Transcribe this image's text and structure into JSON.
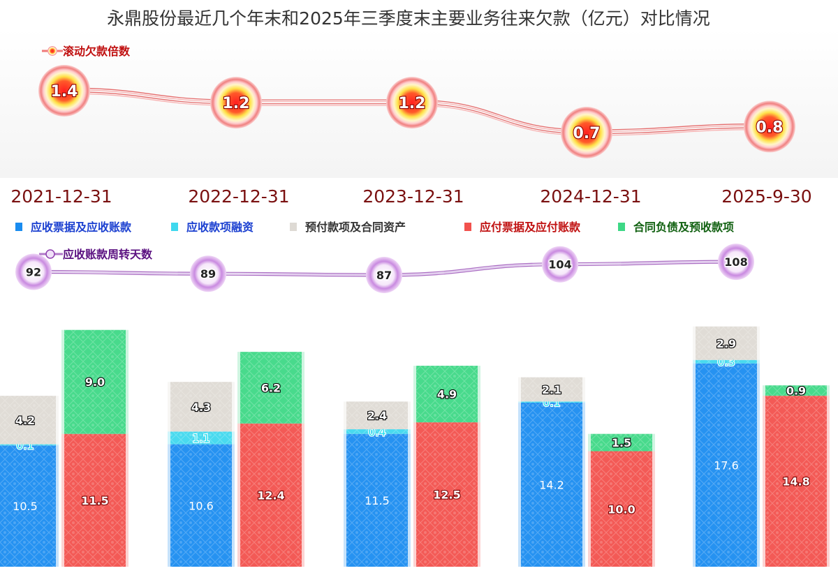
{
  "chart_data": {
    "type": "bar",
    "title": "永鼎股份最近几个年末和2025年三季度末主要业务往来欠款（亿元）对比情况",
    "categories": [
      "2021-12-31",
      "2022-12-31",
      "2023-12-31",
      "2024-12-31",
      "2025-9-30"
    ],
    "stacks": [
      {
        "side": "receivable",
        "series": [
          {
            "name": "应收票据及应收账款",
            "color": "#1a8cf0",
            "values": [
              10.5,
              10.6,
              11.5,
              14.2,
              17.6
            ]
          },
          {
            "name": "应收款项融资",
            "color": "#3fd8ee",
            "values": [
              0.1,
              1.1,
              0.4,
              0.1,
              0.3
            ]
          },
          {
            "name": "预付款项及合同资产",
            "color": "#dedad4",
            "values": [
              4.2,
              4.3,
              2.4,
              2.1,
              2.9
            ]
          }
        ]
      },
      {
        "side": "payable",
        "series": [
          {
            "name": "应付票据及应付账款",
            "color": "#f2514d",
            "values": [
              11.5,
              12.4,
              12.5,
              10.0,
              14.8
            ]
          },
          {
            "name": "合同负债及预收款项",
            "color": "#3ed886",
            "values": [
              9.0,
              6.2,
              4.9,
              1.5,
              0.9
            ]
          }
        ]
      }
    ],
    "rolling_multiple": {
      "name": "滚动欠款倍数",
      "color": "#e84040",
      "values": [
        1.4,
        1.2,
        1.2,
        0.7,
        0.8
      ]
    },
    "receivable_days": {
      "name": "应收账款周转天数",
      "color": "#9040b0",
      "values": [
        92,
        89,
        87,
        104,
        108
      ]
    },
    "legend_order": [
      {
        "name": "应收票据及应收账款",
        "color": "#1a8cf0",
        "text_color": "#1a3fd0"
      },
      {
        "name": "应收款项融资",
        "color": "#3fd8ee",
        "text_color": "#1a3fd0"
      },
      {
        "name": "预付款项及合同资产",
        "color": "#dedad4",
        "text_color": "#333333"
      },
      {
        "name": "应付票据及应付账款",
        "color": "#f2514d",
        "text_color": "#c01010"
      },
      {
        "name": "合同负债及预收款项",
        "color": "#3ed886",
        "text_color": "#106010"
      }
    ]
  }
}
